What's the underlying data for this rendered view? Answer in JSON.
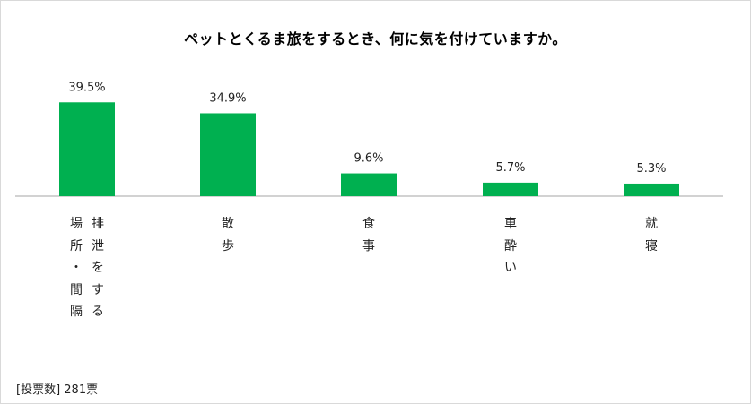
{
  "chart_data": {
    "type": "bar",
    "title": "ペットとくるま旅をするとき、何に気を付けていますか。",
    "categories": [
      "排泄をする場所・間隔",
      "散歩",
      "食事",
      "車酔い",
      "就寝"
    ],
    "category_label_columns": [
      [
        "排泄をする",
        "場所・間隔"
      ],
      [
        "散歩"
      ],
      [
        "食事"
      ],
      [
        "車酔い"
      ],
      [
        "就寝"
      ]
    ],
    "values": [
      39.5,
      34.9,
      9.6,
      5.7,
      5.3
    ],
    "data_labels": [
      "39.5%",
      "34.9%",
      "9.6%",
      "5.7%",
      "5.3%"
    ],
    "unit": "%",
    "ylim": [
      0,
      43
    ],
    "grid": false,
    "bar_color": "#00b050"
  },
  "footnote": "[投票数] 281票"
}
